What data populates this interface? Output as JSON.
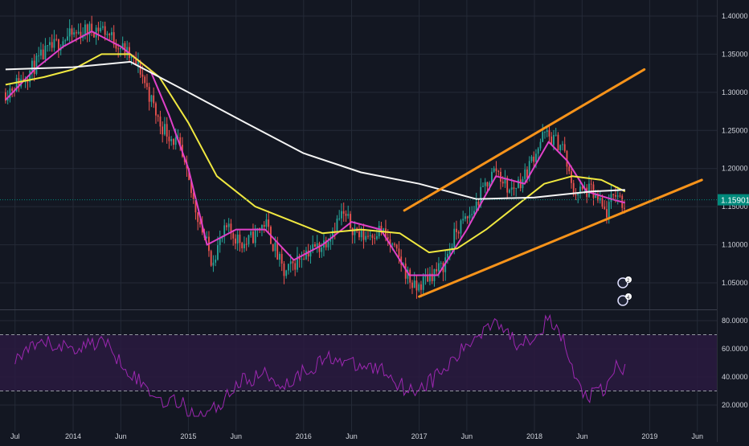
{
  "theme": {
    "background": "#131722",
    "grid": "#242a37",
    "axis_text": "#d1d4dc",
    "candle_up": "#26a69a",
    "candle_down": "#ef5350",
    "ma_fast": "#e040c8",
    "ma_mid": "#f0e840",
    "ma_slow": "#f5f5f5",
    "channel": "#f7931a",
    "rsi_line": "#9c27b0",
    "rsi_band": "#2a1a40",
    "price_badge": "#00897b"
  },
  "price_badge": "1.15901",
  "event_badges": [
    {
      "label": "2",
      "icon": "flag-icon"
    },
    {
      "label": "4",
      "icon": "flag-icon"
    }
  ],
  "chart_data": [
    {
      "type": "candlestick",
      "title": "",
      "ylim": [
        1.02,
        1.41
      ],
      "y_ticks": [
        "1.40000",
        "1.35000",
        "1.30000",
        "1.25000",
        "1.20000",
        "1.15000",
        "1.10000",
        "1.05000"
      ],
      "y_tick_values": [
        1.4,
        1.35,
        1.3,
        1.25,
        1.2,
        1.15,
        1.1,
        1.05
      ],
      "x_ticks": [
        "Jul",
        "2014",
        "Jun",
        "2015",
        "Jun",
        "2016",
        "Jun",
        "2017",
        "Jun",
        "2018",
        "Jun",
        "2019",
        "Jun"
      ],
      "x_tick_dates": [
        "2013-07-01",
        "2014-01-01",
        "2014-06-01",
        "2015-01-01",
        "2015-06-01",
        "2016-01-01",
        "2016-06-01",
        "2017-01-01",
        "2017-06-01",
        "2018-01-01",
        "2018-06-01",
        "2019-01-01",
        "2019-06-01"
      ],
      "last_price": 1.15901,
      "price_path": [
        [
          "2013-06-01",
          1.3
        ],
        [
          "2013-08-01",
          1.32
        ],
        [
          "2013-10-01",
          1.35
        ],
        [
          "2013-12-01",
          1.37
        ],
        [
          "2014-02-01",
          1.38
        ],
        [
          "2014-04-01",
          1.385
        ],
        [
          "2014-06-01",
          1.36
        ],
        [
          "2014-08-01",
          1.33
        ],
        [
          "2014-10-01",
          1.26
        ],
        [
          "2014-12-01",
          1.23
        ],
        [
          "2015-01-15",
          1.16
        ],
        [
          "2015-03-15",
          1.08
        ],
        [
          "2015-05-01",
          1.12
        ],
        [
          "2015-07-01",
          1.1
        ],
        [
          "2015-09-01",
          1.13
        ],
        [
          "2015-11-01",
          1.06
        ],
        [
          "2016-01-01",
          1.09
        ],
        [
          "2016-03-01",
          1.1
        ],
        [
          "2016-05-01",
          1.14
        ],
        [
          "2016-07-01",
          1.11
        ],
        [
          "2016-09-01",
          1.12
        ],
        [
          "2016-11-01",
          1.08
        ],
        [
          "2016-12-20",
          1.04
        ],
        [
          "2017-02-01",
          1.06
        ],
        [
          "2017-03-15",
          1.07
        ],
        [
          "2017-05-01",
          1.12
        ],
        [
          "2017-06-15",
          1.14
        ],
        [
          "2017-08-01",
          1.18
        ],
        [
          "2017-09-01",
          1.2
        ],
        [
          "2017-10-15",
          1.17
        ],
        [
          "2017-12-01",
          1.19
        ],
        [
          "2018-01-01",
          1.22
        ],
        [
          "2018-02-01",
          1.245
        ],
        [
          "2018-04-01",
          1.23
        ],
        [
          "2018-05-01",
          1.17
        ],
        [
          "2018-07-01",
          1.17
        ],
        [
          "2018-08-15",
          1.14
        ],
        [
          "2018-09-15",
          1.17
        ],
        [
          "2018-10-15",
          1.15
        ]
      ],
      "moving_averages": [
        {
          "color_key": "ma_fast",
          "points": [
            [
              "2013-06-01",
              1.29
            ],
            [
              "2013-09-01",
              1.33
            ],
            [
              "2013-12-01",
              1.36
            ],
            [
              "2014-03-01",
              1.38
            ],
            [
              "2014-06-01",
              1.36
            ],
            [
              "2014-09-01",
              1.33
            ],
            [
              "2014-11-01",
              1.27
            ],
            [
              "2015-01-01",
              1.2
            ],
            [
              "2015-03-01",
              1.1
            ],
            [
              "2015-06-01",
              1.12
            ],
            [
              "2015-09-01",
              1.12
            ],
            [
              "2015-12-01",
              1.08
            ],
            [
              "2016-03-01",
              1.1
            ],
            [
              "2016-06-01",
              1.13
            ],
            [
              "2016-09-01",
              1.12
            ],
            [
              "2016-12-01",
              1.06
            ],
            [
              "2017-03-01",
              1.06
            ],
            [
              "2017-06-01",
              1.12
            ],
            [
              "2017-09-01",
              1.19
            ],
            [
              "2017-12-01",
              1.18
            ],
            [
              "2018-02-15",
              1.235
            ],
            [
              "2018-04-15",
              1.21
            ],
            [
              "2018-06-15",
              1.17
            ],
            [
              "2018-09-01",
              1.16
            ],
            [
              "2018-10-15",
              1.155
            ]
          ]
        },
        {
          "color_key": "ma_mid",
          "points": [
            [
              "2013-06-01",
              1.31
            ],
            [
              "2013-10-01",
              1.32
            ],
            [
              "2014-01-01",
              1.33
            ],
            [
              "2014-04-01",
              1.35
            ],
            [
              "2014-07-01",
              1.35
            ],
            [
              "2014-10-01",
              1.32
            ],
            [
              "2015-01-01",
              1.26
            ],
            [
              "2015-04-01",
              1.19
            ],
            [
              "2015-08-01",
              1.15
            ],
            [
              "2015-12-01",
              1.13
            ],
            [
              "2016-03-01",
              1.115
            ],
            [
              "2016-07-01",
              1.12
            ],
            [
              "2016-11-01",
              1.115
            ],
            [
              "2017-02-01",
              1.09
            ],
            [
              "2017-05-01",
              1.095
            ],
            [
              "2017-08-01",
              1.12
            ],
            [
              "2017-11-01",
              1.15
            ],
            [
              "2018-02-01",
              1.18
            ],
            [
              "2018-05-01",
              1.19
            ],
            [
              "2018-08-01",
              1.185
            ],
            [
              "2018-10-15",
              1.17
            ]
          ]
        },
        {
          "color_key": "ma_slow",
          "points": [
            [
              "2013-06-01",
              1.33
            ],
            [
              "2014-01-01",
              1.333
            ],
            [
              "2014-07-01",
              1.34
            ],
            [
              "2015-01-01",
              1.3
            ],
            [
              "2015-07-01",
              1.26
            ],
            [
              "2016-01-01",
              1.22
            ],
            [
              "2016-07-01",
              1.195
            ],
            [
              "2017-01-01",
              1.18
            ],
            [
              "2017-07-01",
              1.16
            ],
            [
              "2018-01-01",
              1.162
            ],
            [
              "2018-07-01",
              1.17
            ],
            [
              "2018-10-15",
              1.172
            ]
          ]
        }
      ],
      "channel_lines": [
        {
          "from": [
            "2016-11-15",
            1.145
          ],
          "to": [
            "2018-12-15",
            1.33
          ]
        },
        {
          "from": [
            "2017-01-01",
            1.032
          ],
          "to": [
            "2019-06-15",
            1.185
          ]
        }
      ]
    },
    {
      "type": "line",
      "title": "",
      "ylim": [
        10,
        85
      ],
      "y_ticks": [
        "80.0000",
        "60.0000",
        "40.0000",
        "20.0000"
      ],
      "y_tick_values": [
        80,
        60,
        40,
        20
      ],
      "overbought": 70,
      "oversold": 30,
      "series": [
        {
          "values": [
            [
              "2013-07-01",
              52
            ],
            [
              "2013-10-01",
              64
            ],
            [
              "2014-01-01",
              60
            ],
            [
              "2014-04-01",
              66
            ],
            [
              "2014-06-01",
              52
            ],
            [
              "2014-08-01",
              36
            ],
            [
              "2014-10-01",
              24
            ],
            [
              "2014-12-01",
              22
            ],
            [
              "2015-02-01",
              12
            ],
            [
              "2015-04-01",
              18
            ],
            [
              "2015-06-01",
              35
            ],
            [
              "2015-09-01",
              42
            ],
            [
              "2015-11-01",
              34
            ],
            [
              "2016-01-01",
              44
            ],
            [
              "2016-04-01",
              55
            ],
            [
              "2016-06-01",
              48
            ],
            [
              "2016-09-01",
              46
            ],
            [
              "2016-12-01",
              30
            ],
            [
              "2017-02-01",
              36
            ],
            [
              "2017-04-01",
              47
            ],
            [
              "2017-06-01",
              62
            ],
            [
              "2017-08-01",
              76
            ],
            [
              "2017-09-01",
              82
            ],
            [
              "2017-11-01",
              64
            ],
            [
              "2018-01-01",
              70
            ],
            [
              "2018-02-15",
              80
            ],
            [
              "2018-04-01",
              67
            ],
            [
              "2018-05-15",
              35
            ],
            [
              "2018-06-15",
              26
            ],
            [
              "2018-08-15",
              30
            ],
            [
              "2018-09-20",
              50
            ],
            [
              "2018-10-15",
              44
            ]
          ]
        }
      ]
    }
  ]
}
